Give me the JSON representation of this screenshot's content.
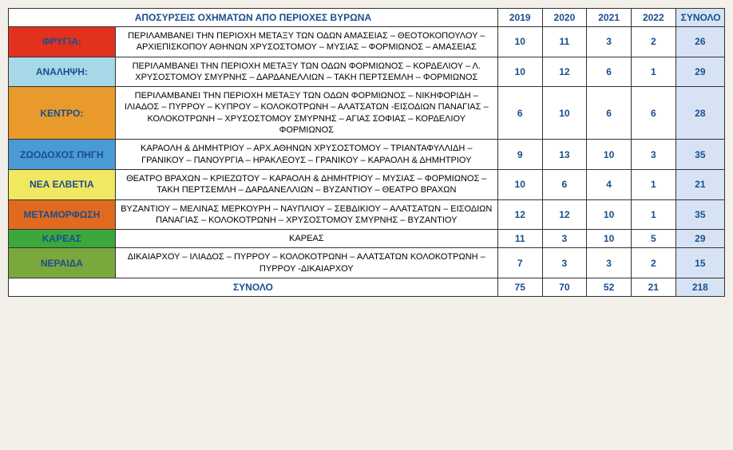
{
  "title": "ΑΠΟΣΥΡΣΕΙΣ ΟΧΗΜΑΤΩΝ ΑΠΟ ΠΕΡΙΟΧΕΣ ΒΥΡΩΝΑ",
  "years": [
    "2019",
    "2020",
    "2021",
    "2022"
  ],
  "totalHeader": "ΣΥΝΟΛΟ",
  "totalRowLabel": "ΣΥΝΟΛΟ",
  "columnWidths": {
    "label": 120,
    "desc": 430,
    "year": 50,
    "total": 55
  },
  "colors": {
    "text": "#1a4d8f",
    "border": "#333",
    "totalBg": "#d7e3f4",
    "cellBg": "#fff",
    "pageBg": "#f2f0e8"
  },
  "rows": [
    {
      "label": "ΦΡΥΓΙΑ:",
      "color": "#e2311d",
      "desc": "ΠΕΡΙΛΑΜΒΑΝΕΙ ΤΗΝ ΠΕΡΙΟΧΗ ΜΕΤΑΞΥ ΤΩΝ ΟΔΩΝ ΑΜΑΣΕΙΑΣ – ΘΕΟΤΟΚΟΠΟΥΛΟΥ – ΑΡΧΙΕΠΙΣΚΟΠΟΥ ΑΘΗΝΩΝ ΧΡΥΣΟΣΤΟΜΟΥ – ΜΥΣΙΑΣ – ΦΟΡΜΙΩΝΟΣ – ΑΜΑΣΕΙΑΣ",
      "values": [
        10,
        11,
        3,
        2
      ],
      "total": 26
    },
    {
      "label": "ΑΝΑΛΗΨΗ:",
      "color": "#a7d8e8",
      "desc": "ΠΕΡΙΛΑΜΒΑΝΕΙ ΤΗΝ ΠΕΡΙΟΧΗ ΜΕΤΑΞΥ ΤΩΝ ΟΔΩΝ ΦΟΡΜΙΩΝΟΣ – ΚΟΡΔΕΛΙΟΥ – Λ. ΧΡΥΣΟΣΤΟΜΟΥ ΣΜΥΡΝΗΣ – ΔΑΡΔΑΝΕΛΛΙΩΝ – ΤΑΚΗ ΠΕΡΤΣΕΜΛΗ – ΦΟΡΜΙΩΝΟΣ",
      "values": [
        10,
        12,
        6,
        1
      ],
      "total": 29
    },
    {
      "label": "ΚΕΝΤΡΟ:",
      "color": "#e89a2a",
      "desc": "ΠΕΡΙΛΑΜΒΑΝΕΙ ΤΗΝ ΠΕΡΙΟΧΗ ΜΕΤΑΞΥ ΤΩΝ ΟΔΩΝ ΦΟΡΜΙΩΝΟΣ – ΝΙΚΗΦΟΡΙΔΗ – ΙΛΙΑΔΟΣ – ΠΥΡΡΟΥ – ΚΥΠΡΟΥ – ΚΟΛΟΚΟΤΡΩΝΗ – ΑΛΑΤΣΑΤΩΝ -ΕΙΣΟΔΙΩΝ ΠΑΝΑΓΙΑΣ – ΚΟΛΟΚΟΤΡΩΝΗ – ΧΡΥΣΟΣΤΟΜΟΥ ΣΜΥΡΝΗΣ – ΑΓΙΑΣ ΣΟΦΙΑΣ – ΚΟΡΔΕΛΙΟΥ ΦΟΡΜΙΩΝΟΣ",
      "values": [
        6,
        10,
        6,
        6
      ],
      "total": 28
    },
    {
      "label": "ΖΩΟΔΟΧΟΣ ΠΗΓΗ",
      "color": "#4a9bd4",
      "desc": "ΚΑΡΑΟΛΗ & ΔΗΜΗΤΡΙΟΥ – ΑΡΧ.ΑΘΗΝΩΝ ΧΡΥΣΟΣΤΟΜΟΥ – ΤΡΙΑΝΤΑΦΥΛΛΙΔΗ – ΓΡΑΝΙΚΟΥ – ΠΑΝΟΥΡΓΙΑ – ΗΡΑΚΛΕΟΥΣ – ΓΡΑΝΙΚΟΥ – ΚΑΡΑΟΛΗ & ΔΗΜΗΤΡΙΟΥ",
      "values": [
        9,
        13,
        10,
        3
      ],
      "total": 35
    },
    {
      "label": "ΝΕΑ ΕΛΒΕΤΙΑ",
      "color": "#f0e860",
      "desc": "ΘΕΑΤΡΟ ΒΡΑΧΩΝ – ΚΡΙΕΖΩΤΟΥ – ΚΑΡΑΟΛΗ & ΔΗΜΗΤΡΙΟΥ – ΜΥΣΙΑΣ – ΦΟΡΜΙΩΝΟΣ – ΤΑΚΗ ΠΕΡΤΣΕΜΛΗ – ΔΑΡΔΑΝΕΛΛΙΩΝ – ΒΥΖΑΝΤΙΟΥ – ΘΕΑΤΡΟ ΒΡΑΧΩΝ",
      "values": [
        10,
        6,
        4,
        1
      ],
      "total": 21
    },
    {
      "label": "ΜΕΤΑΜΟΡΦΩΣΗ",
      "color": "#e26a1f",
      "desc": "ΒΥΖΑΝΤΙΟΥ – ΜΕΛΙΝΑΣ ΜΕΡΚΟΥΡΗ – ΝΑΥΠΛΙΟΥ – ΣΕΒΔΙΚΙΟΥ – ΑΛΑΤΣΑΤΩΝ – ΕΙΣΟΔΙΩΝ ΠΑΝΑΓΙΑΣ – ΚΟΛΟΚΟΤΡΩΝΗ – ΧΡΥΣΟΣΤΟΜΟΥ ΣΜΥΡΝΗΣ – ΒΥΖΑΝΤΙΟΥ",
      "values": [
        12,
        12,
        10,
        1
      ],
      "total": 35
    },
    {
      "label": "ΚΑΡΕΑΣ",
      "color": "#3ca83c",
      "desc": "ΚΑΡΕΑΣ",
      "values": [
        11,
        3,
        10,
        5
      ],
      "total": 29
    },
    {
      "label": "ΝΕΡΑΙΔΑ",
      "color": "#7aa83c",
      "desc": "ΔΙΚΑΙΑΡΧΟΥ – ΙΛΙΑΔΟΣ – ΠΥΡΡΟΥ – ΚΟΛΟΚΟΤΡΩΝΗ – ΑΛΑΤΣΑΤΩΝ ΚΟΛΟΚΟΤΡΩΝΗ – ΠΥΡΡΟΥ -ΔΙΚΑΙΑΡΧΟΥ",
      "values": [
        7,
        3,
        3,
        2
      ],
      "total": 15
    }
  ],
  "totals": {
    "values": [
      75,
      70,
      52,
      21
    ],
    "grand": 218
  }
}
